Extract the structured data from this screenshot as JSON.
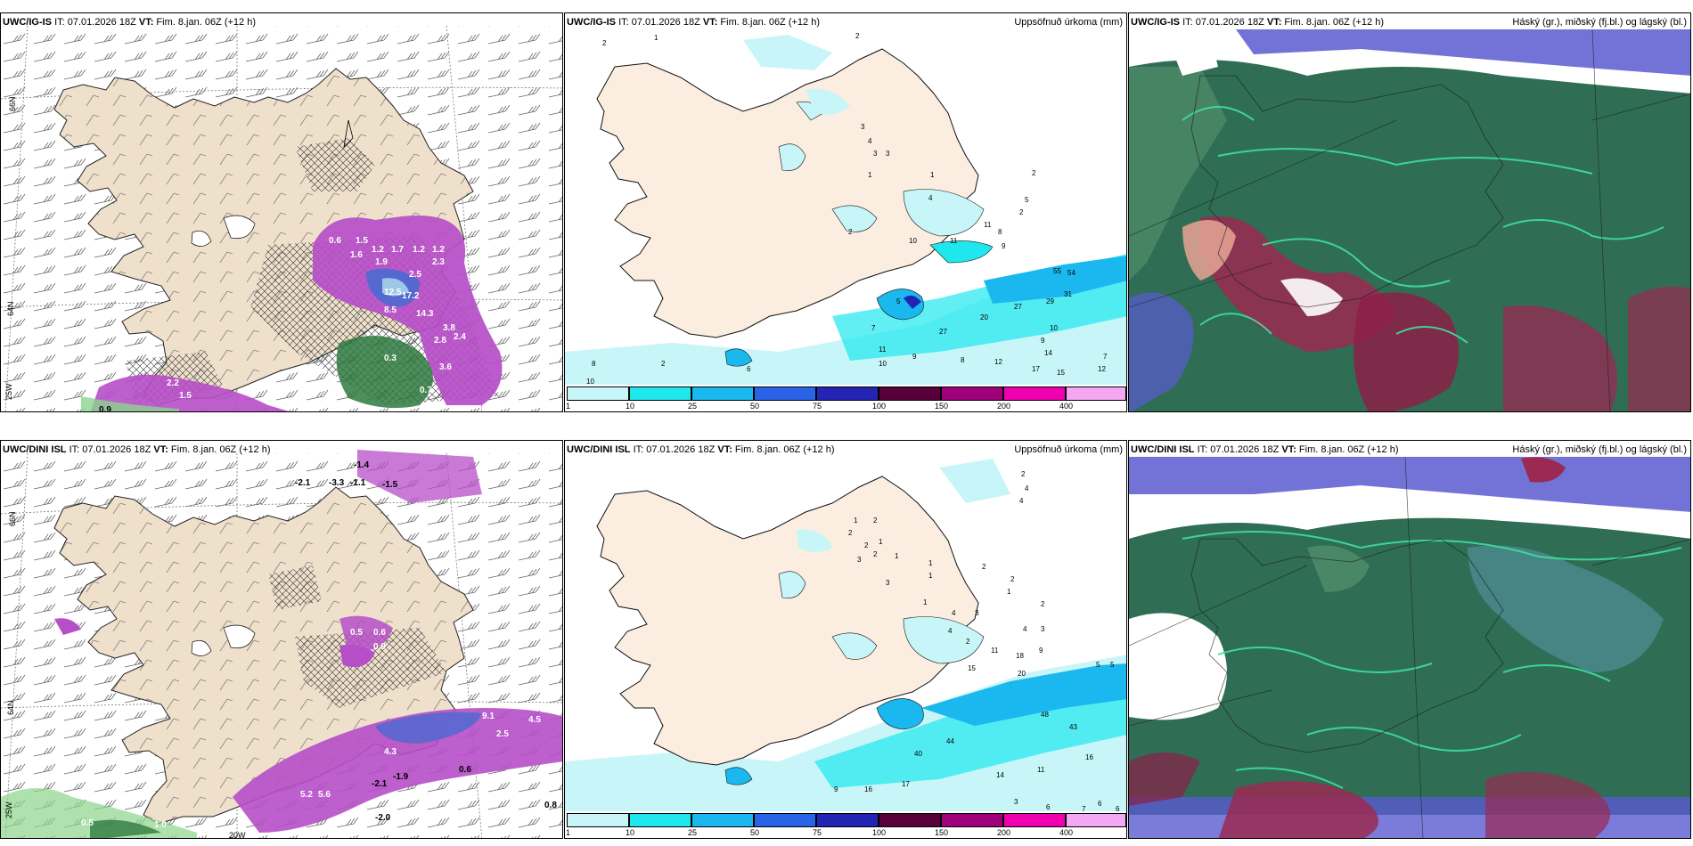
{
  "panels": {
    "tl": {
      "model": "UWC/IG-IS",
      "it": "IT: 07.01.2026 18Z",
      "vt_label": "VT:",
      "vt": "Fim. 8.jan. 06Z",
      "lead": "(+12 h)"
    },
    "tm": {
      "model": "UWC/IG-IS",
      "it": "IT: 07.01.2026 18Z",
      "vt_label": "VT:",
      "vt": "Fim. 8.jan. 06Z",
      "lead": "(+12 h)",
      "right": "Uppsöfnuð úrkoma (mm)"
    },
    "tr": {
      "model": "UWC/IG-IS",
      "it": "IT: 07.01.2026 18Z",
      "vt_label": "VT:",
      "vt": "Fim. 8.jan. 06Z",
      "lead": "(+12 h)",
      "right": "Háský (gr.), miðský (fj.bl.) og lágský (bl.)"
    },
    "bl": {
      "model": "UWC/DINI ISL",
      "it": "IT: 07.01.2026 18Z",
      "vt_label": "VT:",
      "vt": "Fim. 8.jan. 06Z",
      "lead": "(+12 h)"
    },
    "bm": {
      "model": "UWC/DINI ISL",
      "it": "IT: 07.01.2026 18Z",
      "vt_label": "VT:",
      "vt": "Fim. 8.jan. 06Z",
      "lead": "(+12 h)",
      "right": "Uppsöfnuð úrkoma (mm)"
    },
    "br": {
      "model": "UWC/DINI ISL",
      "it": "IT: 07.01.2026 18Z",
      "vt_label": "VT:",
      "vt": "Fim. 8.jan. 06Z",
      "lead": "(+12 h)",
      "right": "Háský (gr.), miðský (fj.bl.) og lágský (bl.)"
    }
  },
  "grid_labels": {
    "lat66": "66N",
    "lat64": "64N",
    "lon25": "25W",
    "lon20": "20W"
  },
  "legend": {
    "ticks": [
      "1",
      "10",
      "25",
      "50",
      "75",
      "100",
      "150",
      "200",
      "400"
    ],
    "colors": [
      "#c8f6f8",
      "#1ee8ee",
      "#1ab8ee",
      "#2a62e8",
      "#2424b4",
      "#58003a",
      "#a0007a",
      "#f000b0",
      "#f4a8f4"
    ]
  },
  "precip_labels_tl": [
    "0.6",
    "1.5",
    "1.6",
    "1.2",
    "1.7",
    "1.2",
    "1.2",
    "1.9",
    "2.3",
    "2.5",
    "12.5",
    "17.2",
    "8.5",
    "14.3",
    "3.8",
    "2.8",
    "2.4",
    "3.6",
    "2.2",
    "1.5",
    "0.9",
    "0.3",
    "0.7"
  ],
  "precip_labels_bl": [
    "-1.4",
    "-2.1",
    "-3.3",
    "-1.1",
    "-1.5",
    "0.5",
    "0.6",
    "0.9",
    "9.1",
    "4.5",
    "2.5",
    "4.3",
    "5.2",
    "5.6",
    "-1.9",
    "-2.1",
    "0.6",
    "0.5",
    "1.0",
    "0.8",
    "-2.0"
  ],
  "accum_labels_tm": [
    "2",
    "1",
    "2",
    "3",
    "4",
    "3",
    "3",
    "1",
    "1",
    "4",
    "2",
    "10",
    "11",
    "11",
    "9",
    "8",
    "5",
    "2",
    "2",
    "5",
    "7",
    "27",
    "20",
    "55",
    "54",
    "31",
    "29",
    "27",
    "10",
    "9",
    "14",
    "12",
    "17",
    "15",
    "7",
    "12",
    "11",
    "10",
    "9",
    "8",
    "6",
    "2",
    "10",
    "8"
  ],
  "accum_labels_bm": [
    "2",
    "4",
    "4",
    "1",
    "2",
    "2",
    "2",
    "3",
    "1",
    "1",
    "2",
    "1",
    "1",
    "3",
    "1",
    "4",
    "3",
    "2",
    "2",
    "1",
    "2",
    "4",
    "4",
    "3",
    "2",
    "11",
    "18",
    "9",
    "15",
    "20",
    "5",
    "5",
    "48",
    "43",
    "44",
    "40",
    "16",
    "17",
    "16",
    "14",
    "11",
    "9",
    "3",
    "6",
    "7",
    "6",
    "6"
  ]
}
